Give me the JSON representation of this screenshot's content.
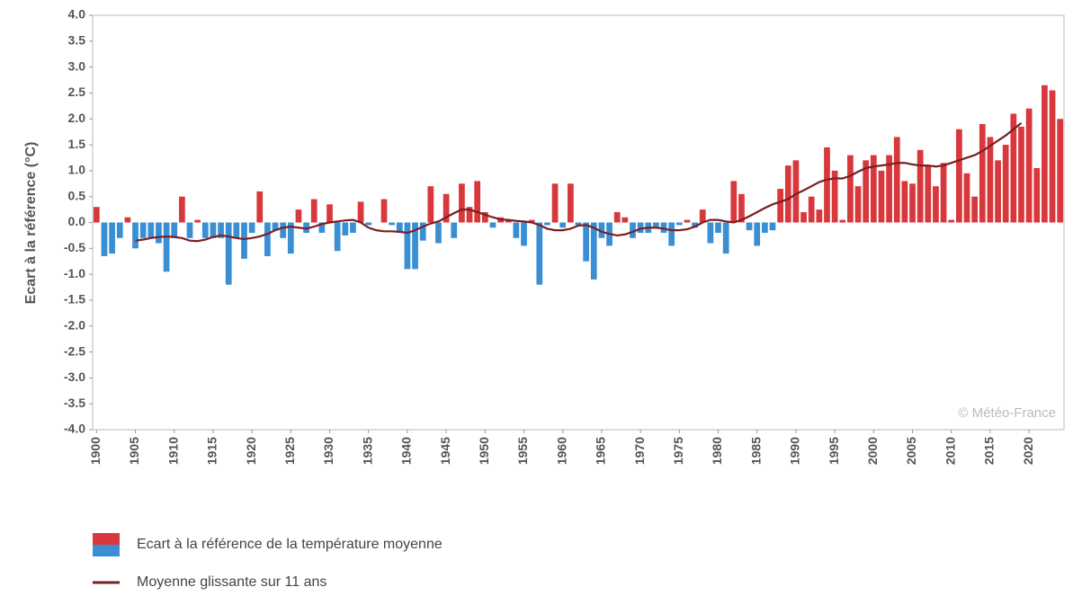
{
  "chart_data": {
    "type": "bar",
    "y_label": "Ecart à la référence (°C)",
    "source": "© Météo-France",
    "x": [
      1900,
      1901,
      1902,
      1903,
      1904,
      1905,
      1906,
      1907,
      1908,
      1909,
      1910,
      1911,
      1912,
      1913,
      1914,
      1915,
      1916,
      1917,
      1918,
      1919,
      1920,
      1921,
      1922,
      1923,
      1924,
      1925,
      1926,
      1927,
      1928,
      1929,
      1930,
      1931,
      1932,
      1933,
      1934,
      1935,
      1936,
      1937,
      1938,
      1939,
      1940,
      1941,
      1942,
      1943,
      1944,
      1945,
      1946,
      1947,
      1948,
      1949,
      1950,
      1951,
      1952,
      1953,
      1954,
      1955,
      1956,
      1957,
      1958,
      1959,
      1960,
      1961,
      1962,
      1963,
      1964,
      1965,
      1966,
      1967,
      1968,
      1969,
      1970,
      1971,
      1972,
      1973,
      1974,
      1975,
      1976,
      1977,
      1978,
      1979,
      1980,
      1981,
      1982,
      1983,
      1984,
      1985,
      1986,
      1987,
      1988,
      1989,
      1990,
      1991,
      1992,
      1993,
      1994,
      1995,
      1996,
      1997,
      1998,
      1999,
      2000,
      2001,
      2002,
      2003,
      2004,
      2005,
      2006,
      2007,
      2008,
      2009,
      2010,
      2011,
      2012,
      2013,
      2014,
      2015,
      2016,
      2017,
      2018,
      2019,
      2020,
      2021,
      2022,
      2023,
      2024
    ],
    "xlim": [
      1899.5,
      2024.5
    ],
    "xticks": [
      1900,
      1905,
      1910,
      1915,
      1920,
      1925,
      1930,
      1935,
      1940,
      1945,
      1950,
      1955,
      1960,
      1965,
      1970,
      1975,
      1980,
      1985,
      1990,
      1995,
      2000,
      2005,
      2010,
      2015,
      2020
    ],
    "ylim": [
      -4,
      4
    ],
    "yticks": [
      {
        "value": 4,
        "label": "4.0"
      },
      3.5,
      {
        "value": 3,
        "label": "3.0"
      },
      2.5,
      {
        "value": 2,
        "label": "2.0"
      },
      1.5,
      {
        "value": 1,
        "label": "1.0"
      },
      0.5,
      {
        "value": 0,
        "label": "0.0"
      },
      -0.5,
      {
        "value": -1,
        "label": "-1.0"
      },
      -1.5,
      {
        "value": -2,
        "label": "-2.0"
      },
      -2.5,
      {
        "value": -3,
        "label": "-3.0"
      },
      -3.5,
      {
        "value": -4,
        "label": "-4.0"
      }
    ],
    "series": [
      {
        "name": "Ecart à la référence de la température moyenne",
        "type": "bar",
        "color_positive": "#d8383c",
        "color_negative": "#3a8fd4",
        "values": [
          0.3,
          -0.65,
          -0.6,
          -0.3,
          0.1,
          -0.5,
          -0.3,
          -0.3,
          -0.4,
          -0.95,
          -0.3,
          0.5,
          -0.3,
          0.05,
          -0.3,
          -0.3,
          -0.3,
          -1.2,
          -0.3,
          -0.7,
          -0.2,
          0.6,
          -0.65,
          -0.15,
          -0.3,
          -0.6,
          0.25,
          -0.2,
          0.45,
          -0.2,
          0.35,
          -0.55,
          -0.25,
          -0.2,
          0.4,
          -0.05,
          0.0,
          0.45,
          -0.05,
          -0.2,
          -0.9,
          -0.9,
          -0.35,
          0.7,
          -0.4,
          0.55,
          -0.3,
          0.75,
          0.3,
          0.8,
          0.2,
          -0.1,
          0.1,
          0.05,
          -0.3,
          -0.45,
          0.05,
          -1.2,
          -0.05,
          0.75,
          -0.1,
          0.75,
          -0.05,
          -0.75,
          -1.1,
          -0.3,
          -0.45,
          0.2,
          0.1,
          -0.3,
          -0.2,
          -0.2,
          -0.1,
          -0.2,
          -0.45,
          -0.05,
          0.05,
          -0.1,
          0.25,
          -0.4,
          -0.2,
          -0.6,
          0.8,
          0.55,
          -0.15,
          -0.45,
          -0.2,
          -0.15,
          0.65,
          1.1,
          1.2,
          0.2,
          0.5,
          0.25,
          1.45,
          1.0,
          0.05,
          1.3,
          0.7,
          1.2,
          1.3,
          1.0,
          1.3,
          1.65,
          0.8,
          0.75,
          1.4,
          1.1,
          0.7,
          1.15,
          0.05,
          1.8,
          0.95,
          0.5,
          1.9,
          1.65,
          1.2,
          1.5,
          2.1,
          1.85,
          2.2,
          1.05,
          2.65,
          2.55,
          2.0
        ]
      },
      {
        "name": "Moyenne glissante sur 11 ans",
        "type": "line",
        "color": "#7a1f22",
        "values": [
          null,
          null,
          null,
          null,
          null,
          -0.35,
          -0.33,
          -0.3,
          -0.28,
          -0.27,
          -0.28,
          -0.3,
          -0.35,
          -0.36,
          -0.33,
          -0.28,
          -0.25,
          -0.27,
          -0.3,
          -0.32,
          -0.3,
          -0.27,
          -0.22,
          -0.15,
          -0.1,
          -0.08,
          -0.1,
          -0.12,
          -0.08,
          -0.03,
          0.0,
          0.02,
          0.04,
          0.05,
          0.0,
          -0.1,
          -0.15,
          -0.17,
          -0.17,
          -0.18,
          -0.2,
          -0.15,
          -0.08,
          -0.02,
          0.02,
          0.1,
          0.18,
          0.25,
          0.25,
          0.2,
          0.15,
          0.1,
          0.06,
          0.05,
          0.03,
          0.02,
          0.0,
          -0.05,
          -0.12,
          -0.15,
          -0.15,
          -0.12,
          -0.06,
          -0.05,
          -0.1,
          -0.18,
          -0.22,
          -0.25,
          -0.23,
          -0.18,
          -0.12,
          -0.1,
          -0.1,
          -0.12,
          -0.15,
          -0.15,
          -0.13,
          -0.08,
          0.0,
          0.05,
          0.05,
          0.02,
          0.0,
          0.05,
          0.12,
          0.2,
          0.28,
          0.35,
          0.4,
          0.45,
          0.55,
          0.62,
          0.7,
          0.78,
          0.83,
          0.85,
          0.85,
          0.9,
          0.98,
          1.05,
          1.08,
          1.1,
          1.12,
          1.15,
          1.15,
          1.12,
          1.1,
          1.1,
          1.08,
          1.1,
          1.15,
          1.2,
          1.25,
          1.3,
          1.38,
          1.48,
          1.58,
          1.68,
          1.8,
          1.92,
          null,
          null,
          null,
          null,
          null
        ]
      }
    ]
  }
}
